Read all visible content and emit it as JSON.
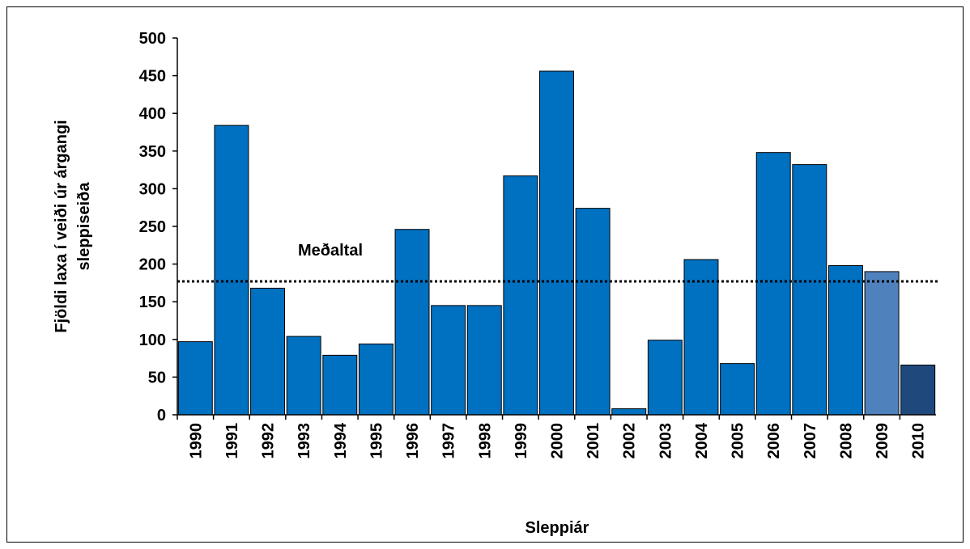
{
  "chart_data": {
    "type": "bar",
    "x_label": "Sleppiár",
    "y_label": [
      "Fjöldi laxa í veiði úr árgangi",
      "sleppiseiða"
    ],
    "categories": [
      "1990",
      "1991",
      "1992",
      "1993",
      "1994",
      "1995",
      "1996",
      "1997",
      "1998",
      "1999",
      "2000",
      "2001",
      "2002",
      "2003",
      "2004",
      "2005",
      "2006",
      "2007",
      "2008",
      "2009",
      "2010"
    ],
    "values": [
      97,
      384,
      168,
      104,
      79,
      94,
      246,
      145,
      145,
      317,
      456,
      274,
      8,
      99,
      206,
      68,
      348,
      332,
      198,
      190,
      66
    ],
    "colors": [
      "#0070c0",
      "#0070c0",
      "#0070c0",
      "#0070c0",
      "#0070c0",
      "#0070c0",
      "#0070c0",
      "#0070c0",
      "#0070c0",
      "#0070c0",
      "#0070c0",
      "#0070c0",
      "#0070c0",
      "#0070c0",
      "#0070c0",
      "#0070c0",
      "#0070c0",
      "#0070c0",
      "#0070c0",
      "#4f81bd",
      "#1f497d"
    ],
    "ylim": [
      0,
      500
    ],
    "yticks": [
      0,
      50,
      100,
      150,
      200,
      250,
      300,
      350,
      400,
      450,
      500
    ],
    "reference_line": {
      "value": 177,
      "label": "Meðaltal"
    }
  }
}
